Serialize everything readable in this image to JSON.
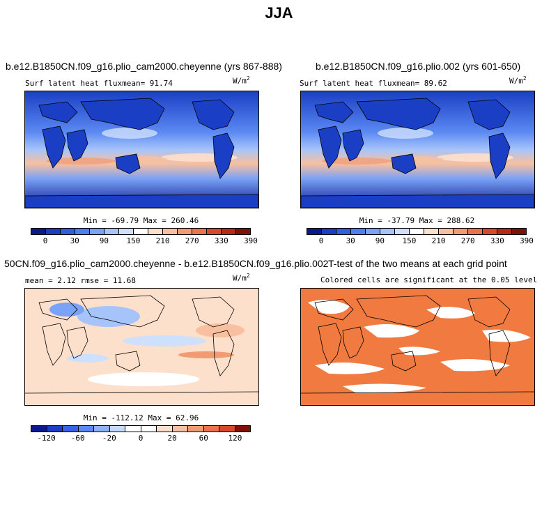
{
  "page_title": "JJA",
  "panels": {
    "top_left": {
      "title": "b.e12.B1850CN.f09_g16.plio_cam2000.cheyenne (yrs 867-888)",
      "subtitle": "Surf latent heat fluxmean=  91.74",
      "unit_base": "W/m",
      "unit_exp": "2",
      "minmax": "Min = -69.79 Max = 260.46"
    },
    "top_right": {
      "title": "b.e12.B1850CN.f09_g16.plio.002 (yrs 601-650)",
      "subtitle": "Surf latent heat fluxmean=  89.62",
      "unit_base": "W/m",
      "unit_exp": "2",
      "minmax": "Min = -37.79 Max = 288.62"
    },
    "bottom_left": {
      "title": "50CN.f09_g16.plio_cam2000.cheyenne - b.e12.B1850CN.f09_g16.plio.002",
      "subtitle": "mean =    2.12    rmse =   11.68",
      "unit_base": "W/m",
      "unit_exp": "2",
      "minmax": "Min = -112.12 Max =  62.96"
    },
    "bottom_right": {
      "title": "T-test of the two means at each grid point",
      "subtitle": "Colored cells are significant at the 0.05 level"
    }
  },
  "colorbars": {
    "absolute": {
      "ticks": [
        "0",
        "30",
        "90",
        "150",
        "210",
        "270",
        "330",
        "390"
      ],
      "colors": [
        "#0a1a8c",
        "#1a3fc4",
        "#2f5fe0",
        "#4d7ff0",
        "#7aa2f7",
        "#a6c4fa",
        "#cfe0fc",
        "#ffffff",
        "#fde0cc",
        "#f8c0a0",
        "#f29a72",
        "#e8744b",
        "#d64a2a",
        "#b52a14",
        "#7e1206"
      ]
    },
    "difference": {
      "ticks": [
        "-120",
        "-60",
        "-20",
        "0",
        "20",
        "60",
        "120"
      ],
      "colors": [
        "#0a1a8c",
        "#1a3fc4",
        "#3463e4",
        "#5b89f2",
        "#8fb1f8",
        "#c5d9fc",
        "#ffffff",
        "#ffffff",
        "#fde0cc",
        "#f8c0a0",
        "#f29a72",
        "#e8744b",
        "#d64a2a",
        "#7e1206"
      ]
    }
  },
  "ttest_color": "#f07a40"
}
